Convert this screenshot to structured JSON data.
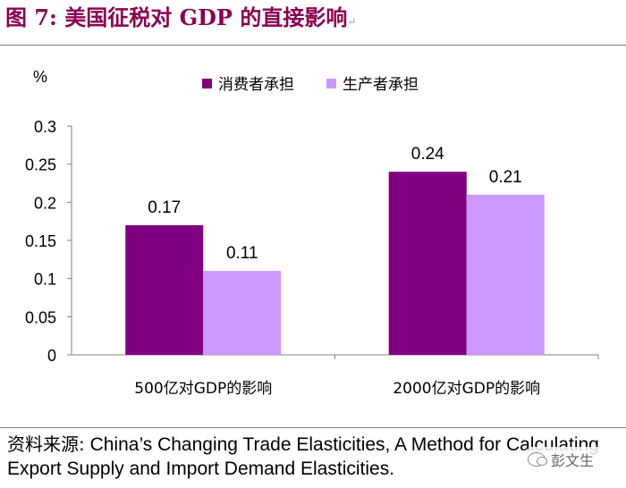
{
  "figure": {
    "title": "图 7:  美国征税对 GDP 的直接影响",
    "title_mark": "↵"
  },
  "chart_data": {
    "type": "bar",
    "title": "",
    "ylabel": "%",
    "xlabel": "",
    "ylim": [
      0,
      0.3
    ],
    "yticks": [
      "0",
      "0.05",
      "0.1",
      "0.15",
      "0.2",
      "0.25",
      "0.3"
    ],
    "ytick_values": [
      0,
      0.05,
      0.1,
      0.15,
      0.2,
      0.25,
      0.3
    ],
    "categories": [
      "500亿对GDP的影响",
      "2000亿对GDP的影响"
    ],
    "series": [
      {
        "name": "消费者承担",
        "values": [
          0.17,
          0.24
        ],
        "labels": [
          "0.17",
          "0.24"
        ],
        "color": "#800080"
      },
      {
        "name": "生产者承担",
        "values": [
          0.11,
          0.21
        ],
        "labels": [
          "0.11",
          "0.21"
        ],
        "color": "#CC99FF"
      }
    ],
    "grid": false,
    "legend": "top-center"
  },
  "source": {
    "label": "资料来源:",
    "text": " China’s Changing Trade Elasticities, A Method for Calculating Export Supply and Import Demand Elasticities."
  },
  "watermark": {
    "text": "彭文生",
    "icon": "wechat-icon"
  }
}
